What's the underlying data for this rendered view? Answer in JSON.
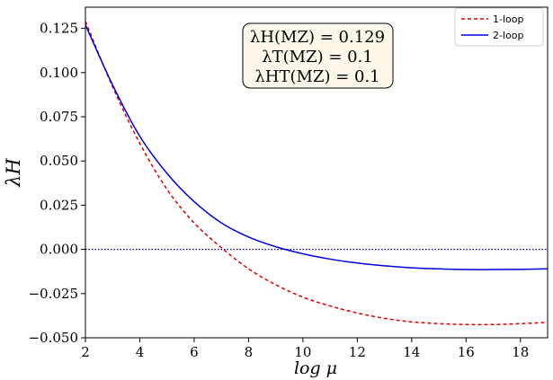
{
  "chart_data": {
    "type": "line",
    "xlabel": "log μ",
    "ylabel": "λH",
    "xlim": [
      2,
      19
    ],
    "ylim": [
      -0.05,
      0.137
    ],
    "xticks": [
      2,
      4,
      6,
      8,
      10,
      12,
      14,
      16,
      18
    ],
    "yticks": [
      -0.05,
      -0.025,
      0.0,
      0.025,
      0.05,
      0.075,
      0.1,
      0.125
    ],
    "ytick_labels": [
      "−0.050",
      "−0.025",
      "0.000",
      "0.025",
      "0.050",
      "0.075",
      "0.100",
      "0.125"
    ],
    "xtick_labels": [
      "2",
      "4",
      "6",
      "8",
      "10",
      "12",
      "14",
      "16",
      "18"
    ],
    "grid": false,
    "legend_position": "top-right",
    "hline": {
      "y": 0.0,
      "color": "#0000cc",
      "style": "dotted"
    },
    "annotation": {
      "lines": [
        "λH(MZ) = 0.129",
        "λT(MZ) = 0.1",
        "λHT(MZ) = 0.1"
      ],
      "position": "top-center"
    },
    "series": [
      {
        "name": "1-loop",
        "color": "#dd0000",
        "style": "dashed",
        "x": [
          2,
          3,
          4,
          5,
          6,
          7,
          8,
          9,
          10,
          11,
          12,
          13,
          14,
          15,
          16,
          17,
          18,
          19
        ],
        "y": [
          0.129,
          0.092,
          0.06,
          0.034,
          0.015,
          0.001,
          -0.011,
          -0.02,
          -0.027,
          -0.032,
          -0.036,
          -0.039,
          -0.041,
          -0.042,
          -0.0425,
          -0.0425,
          -0.042,
          -0.0413
        ]
      },
      {
        "name": "2-loop",
        "color": "#0000dd",
        "style": "solid",
        "x": [
          2,
          3,
          4,
          5,
          6,
          7,
          8,
          9,
          10,
          11,
          12,
          13,
          14,
          15,
          16,
          17,
          18,
          19
        ],
        "y": [
          0.127,
          0.093,
          0.064,
          0.043,
          0.027,
          0.015,
          0.007,
          0.0015,
          -0.0025,
          -0.0055,
          -0.0077,
          -0.0093,
          -0.0104,
          -0.011,
          -0.0114,
          -0.0114,
          -0.0113,
          -0.011
        ]
      }
    ]
  }
}
